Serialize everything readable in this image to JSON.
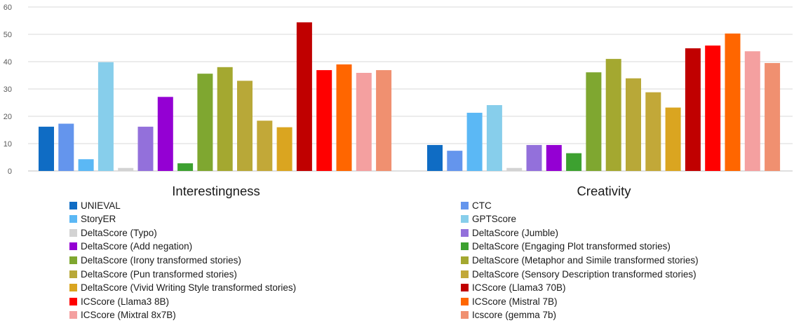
{
  "chart_data": {
    "type": "bar",
    "ylim": [
      0,
      60
    ],
    "yticks": [
      0,
      10,
      20,
      30,
      40,
      50,
      60
    ],
    "grid": true,
    "legend_placement": "bottom",
    "categories": [
      "Interestingness",
      "Creativity"
    ],
    "series": [
      {
        "name": "UNIEVAL",
        "color": "#0F6CC4",
        "values": [
          16.2,
          9.5
        ]
      },
      {
        "name": "CTC",
        "color": "#6495ED",
        "values": [
          17.3,
          7.4
        ]
      },
      {
        "name": "StoryER",
        "color": "#5BB8F5",
        "values": [
          4.3,
          21.3
        ]
      },
      {
        "name": "GPTScore",
        "color": "#87CEEB",
        "values": [
          39.8,
          24.1
        ]
      },
      {
        "name": "DeltaScore (Typo)",
        "color": "#D3D3D3",
        "values": [
          1.1,
          1.1
        ]
      },
      {
        "name": "DeltaScore (Jumble)",
        "color": "#9370DB",
        "values": [
          16.2,
          9.5
        ]
      },
      {
        "name": "DeltaScore (Add negation)",
        "color": "#9400D3",
        "values": [
          27.1,
          9.5
        ]
      },
      {
        "name": "DeltaScore (Engaging Plot transformed stories)",
        "color": "#3DA130",
        "values": [
          2.8,
          6.5
        ]
      },
      {
        "name": "DeltaScore (Irony transformed stories)",
        "color": "#7FA730",
        "values": [
          35.6,
          36.1
        ]
      },
      {
        "name": "DeltaScore (Metaphor and Simile transformed stories)",
        "color": "#A4A830",
        "values": [
          38.0,
          41.0
        ]
      },
      {
        "name": "DeltaScore (Pun transformed stories)",
        "color": "#B8A838",
        "values": [
          33.0,
          33.9
        ]
      },
      {
        "name": "DeltaScore (Sensory Description transformed stories)",
        "color": "#C2A838",
        "values": [
          18.4,
          28.8
        ]
      },
      {
        "name": "DeltaScore (Vivid Writing Style transformed stories)",
        "color": "#DAA520",
        "values": [
          16.0,
          23.2
        ]
      },
      {
        "name": "ICScore (Llama3 70B)",
        "color": "#C00000",
        "values": [
          54.4,
          44.9
        ]
      },
      {
        "name": "ICScore (Llama3 8B)",
        "color": "#FF0000",
        "values": [
          36.9,
          45.9
        ]
      },
      {
        "name": "ICScore (Mistral 7B)",
        "color": "#FF6600",
        "values": [
          39.0,
          50.3
        ]
      },
      {
        "name": "ICScore (Mixtral 8x7B)",
        "color": "#F4A0A0",
        "values": [
          35.9,
          43.8
        ]
      },
      {
        "name": "Icscore (gemma 7b)",
        "color": "#F09070",
        "values": [
          36.9,
          39.5
        ]
      }
    ]
  }
}
